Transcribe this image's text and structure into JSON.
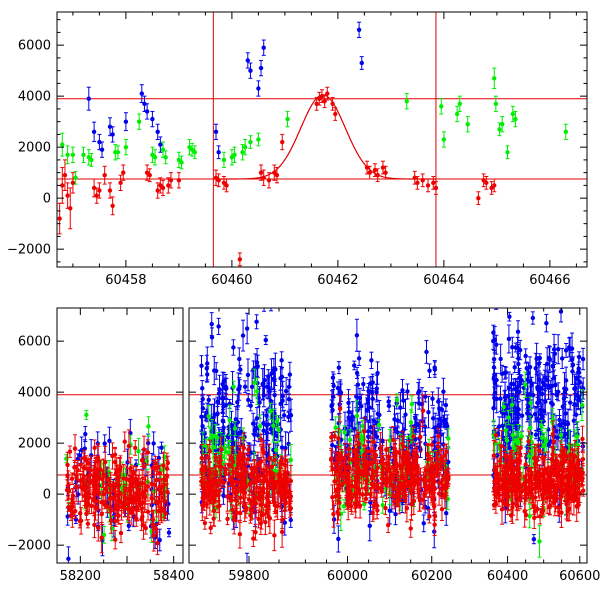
{
  "colors": {
    "series_blue": "#0000ee",
    "series_green": "#00ee00",
    "series_red": "#ee0000",
    "reference_lines": "#e00000",
    "axes": "#000000",
    "background": "#ffffff"
  },
  "chart_data": [
    {
      "type": "scatter",
      "panel": "top",
      "title": "",
      "xlabel": "",
      "ylabel": "",
      "xlim": [
        60456.7,
        60466.7
      ],
      "ylim": [
        -2700,
        7300
      ],
      "x_ticks": [
        60458,
        60460,
        60462,
        60464,
        60466
      ],
      "x_tick_labels": [
        "60458",
        "60460",
        "60462",
        "60464",
        "60466"
      ],
      "y_ticks": [
        -2000,
        0,
        2000,
        4000,
        6000
      ],
      "y_tick_labels": [
        "−2000",
        "0",
        "2000",
        "4000",
        "6000"
      ],
      "grid": false,
      "legend": "none",
      "error_bars": true,
      "horizontal_lines": [
        3900,
        750
      ],
      "vertical_lines": [
        60459.65,
        60463.85
      ],
      "model_curve": {
        "description": "Gaussian bump on constant baseline",
        "baseline": 750,
        "peak": 4050,
        "center": 60461.72,
        "sigma": 0.42,
        "x_range": [
          60459.65,
          60463.85
        ]
      },
      "series": [
        {
          "color_key": "series_blue",
          "points": [
            [
              60457.3,
              3900,
              450
            ],
            [
              60457.4,
              2600,
              380
            ],
            [
              60457.5,
              2200,
              300
            ],
            [
              60457.55,
              1900,
              300
            ],
            [
              60457.7,
              2800,
              350
            ],
            [
              60457.75,
              2500,
              300
            ],
            [
              60458.0,
              3000,
              350
            ],
            [
              60458.3,
              4100,
              350
            ],
            [
              60458.35,
              3700,
              300
            ],
            [
              60458.4,
              3400,
              300
            ],
            [
              60458.5,
              3100,
              300
            ],
            [
              60458.6,
              2600,
              300
            ],
            [
              60458.65,
              2100,
              300
            ],
            [
              60459.7,
              2600,
              300
            ],
            [
              60459.75,
              1800,
              250
            ],
            [
              60460.3,
              5400,
              300
            ],
            [
              60460.35,
              5000,
              300
            ],
            [
              60460.5,
              4300,
              300
            ],
            [
              60460.55,
              5100,
              300
            ],
            [
              60460.6,
              5900,
              300
            ],
            [
              60462.4,
              6600,
              300
            ],
            [
              60462.45,
              5300,
              250
            ]
          ]
        },
        {
          "color_key": "series_green",
          "points": [
            [
              60456.8,
              2100,
              450
            ],
            [
              60456.9,
              1700,
              350
            ],
            [
              60457.0,
              1700,
              300
            ],
            [
              60457.05,
              800,
              250
            ],
            [
              60457.2,
              1700,
              300
            ],
            [
              60457.3,
              1600,
              300
            ],
            [
              60457.35,
              1500,
              250
            ],
            [
              60457.8,
              1800,
              300
            ],
            [
              60457.85,
              1800,
              250
            ],
            [
              60458.0,
              2000,
              300
            ],
            [
              60458.25,
              3000,
              300
            ],
            [
              60458.5,
              1700,
              300
            ],
            [
              60458.55,
              1600,
              300
            ],
            [
              60458.7,
              1900,
              300
            ],
            [
              60458.75,
              1600,
              250
            ],
            [
              60459.0,
              1500,
              300
            ],
            [
              60459.05,
              1400,
              250
            ],
            [
              60459.2,
              2000,
              300
            ],
            [
              60459.25,
              1900,
              250
            ],
            [
              60459.3,
              1800,
              250
            ],
            [
              60459.85,
              1500,
              300
            ],
            [
              60460.0,
              1600,
              300
            ],
            [
              60460.05,
              1700,
              300
            ],
            [
              60460.2,
              1800,
              300
            ],
            [
              60460.25,
              2000,
              300
            ],
            [
              60460.35,
              2200,
              250
            ],
            [
              60460.5,
              2300,
              250
            ],
            [
              60461.05,
              3100,
              300
            ],
            [
              60463.3,
              3800,
              300
            ],
            [
              60463.95,
              3600,
              300
            ],
            [
              60464.0,
              2300,
              300
            ],
            [
              60464.25,
              3300,
              300
            ],
            [
              60464.3,
              3700,
              300
            ],
            [
              60464.45,
              2900,
              300
            ],
            [
              60464.95,
              4700,
              400
            ],
            [
              60464.98,
              3700,
              300
            ],
            [
              60465.05,
              2700,
              250
            ],
            [
              60465.1,
              2900,
              300
            ],
            [
              60465.2,
              1800,
              250
            ],
            [
              60465.3,
              3300,
              300
            ],
            [
              60465.35,
              3100,
              300
            ],
            [
              60466.3,
              2600,
              300
            ]
          ]
        },
        {
          "color_key": "series_red",
          "points": [
            [
              60456.75,
              -800,
              600
            ],
            [
              60456.8,
              500,
              700
            ],
            [
              60456.85,
              900,
              600
            ],
            [
              60456.9,
              100,
              500
            ],
            [
              60456.95,
              -400,
              800
            ],
            [
              60457.0,
              600,
              400
            ],
            [
              60457.4,
              400,
              350
            ],
            [
              60457.45,
              100,
              300
            ],
            [
              60457.5,
              300,
              300
            ],
            [
              60457.6,
              900,
              350
            ],
            [
              60457.7,
              300,
              300
            ],
            [
              60457.75,
              -300,
              350
            ],
            [
              60457.9,
              600,
              300
            ],
            [
              60457.95,
              1000,
              300
            ],
            [
              60458.4,
              1000,
              300
            ],
            [
              60458.45,
              900,
              250
            ],
            [
              60458.6,
              300,
              300
            ],
            [
              60458.65,
              500,
              300
            ],
            [
              60458.7,
              400,
              300
            ],
            [
              60458.8,
              500,
              300
            ],
            [
              60458.85,
              700,
              300
            ],
            [
              60459.0,
              700,
              300
            ],
            [
              60459.7,
              800,
              300
            ],
            [
              60459.75,
              700,
              250
            ],
            [
              60459.85,
              600,
              250
            ],
            [
              60459.9,
              500,
              250
            ],
            [
              60460.15,
              -2400,
              250
            ],
            [
              60460.55,
              1000,
              300
            ],
            [
              60460.6,
              800,
              300
            ],
            [
              60460.7,
              700,
              300
            ],
            [
              60460.8,
              1000,
              300
            ],
            [
              60460.85,
              900,
              300
            ],
            [
              60460.95,
              2200,
              300
            ],
            [
              60461.6,
              3700,
              250
            ],
            [
              60461.65,
              3900,
              250
            ],
            [
              60461.7,
              4000,
              250
            ],
            [
              60461.75,
              3800,
              250
            ],
            [
              60461.8,
              4100,
              250
            ],
            [
              60461.9,
              3700,
              250
            ],
            [
              60461.95,
              3300,
              250
            ],
            [
              60462.55,
              1200,
              250
            ],
            [
              60462.6,
              1000,
              250
            ],
            [
              60462.7,
              1100,
              250
            ],
            [
              60462.75,
              900,
              250
            ],
            [
              60462.85,
              1200,
              250
            ],
            [
              60462.9,
              1000,
              250
            ],
            [
              60463.45,
              800,
              250
            ],
            [
              60463.5,
              600,
              250
            ],
            [
              60463.6,
              700,
              250
            ],
            [
              60463.7,
              500,
              250
            ],
            [
              60463.8,
              600,
              250
            ],
            [
              60463.85,
              400,
              250
            ],
            [
              60464.65,
              0,
              250
            ],
            [
              60464.75,
              700,
              250
            ],
            [
              60464.8,
              600,
              250
            ],
            [
              60464.9,
              400,
              250
            ],
            [
              60464.95,
              500,
              250
            ]
          ]
        }
      ]
    },
    {
      "type": "scatter",
      "panel": "bottom",
      "title": "",
      "xlabel": "",
      "ylabel": "",
      "broken_axis": true,
      "ylim": [
        -2700,
        7300
      ],
      "y_ticks": [
        -2000,
        0,
        2000,
        4000,
        6000
      ],
      "y_tick_labels": [
        "−2000",
        "0",
        "2000",
        "4000",
        "6000"
      ],
      "grid": false,
      "legend": "none",
      "error_bars": true,
      "horizontal_lines": [
        3900,
        750
      ],
      "x_segments": [
        {
          "xlim": [
            58150,
            58420
          ],
          "x_ticks": [
            58200,
            58300,
            58400
          ],
          "x_tick_labels": [
            "58200",
            "",
            "58400"
          ]
        },
        {
          "xlim": [
            59700,
            59880
          ],
          "x_ticks": [
            59800
          ],
          "x_tick_labels": [
            "59800"
          ]
        },
        {
          "xlim": [
            59880,
            60260
          ],
          "x_ticks": [
            60000,
            60200
          ],
          "x_tick_labels": [
            "60000",
            "60200"
          ]
        },
        {
          "xlim": [
            60260,
            60620
          ],
          "x_ticks": [
            60400,
            60600
          ],
          "x_tick_labels": [
            "60400",
            "60600"
          ]
        }
      ],
      "observing_seasons": [
        {
          "segment": 0,
          "x_range": [
            58170,
            58390
          ],
          "blue": {
            "median": 500,
            "scatter": 1100,
            "n": 70
          },
          "green": {
            "median": 500,
            "scatter": 900,
            "n": 45
          },
          "red": {
            "median": 100,
            "scatter": 700,
            "n": 220
          }
        },
        {
          "segment": 1,
          "x_range": [
            59720,
            59870
          ],
          "blue": {
            "median": 2800,
            "scatter": 1800,
            "n": 230
          },
          "green": {
            "median": 1200,
            "scatter": 1000,
            "n": 70
          },
          "red": {
            "median": 300,
            "scatter": 700,
            "n": 240
          }
        },
        {
          "segment": 2,
          "x_range": [
            59960,
            60240
          ],
          "blue": {
            "median": 2300,
            "scatter": 1600,
            "n": 230
          },
          "green": {
            "median": 1200,
            "scatter": 1100,
            "n": 70
          },
          "red": {
            "median": 600,
            "scatter": 700,
            "n": 300
          }
        },
        {
          "segment": 3,
          "x_range": [
            60360,
            60610
          ],
          "blue": {
            "median": 3400,
            "scatter": 1700,
            "n": 260
          },
          "green": {
            "median": 1400,
            "scatter": 1100,
            "n": 80
          },
          "red": {
            "median": 500,
            "scatter": 650,
            "n": 280
          }
        }
      ]
    }
  ]
}
